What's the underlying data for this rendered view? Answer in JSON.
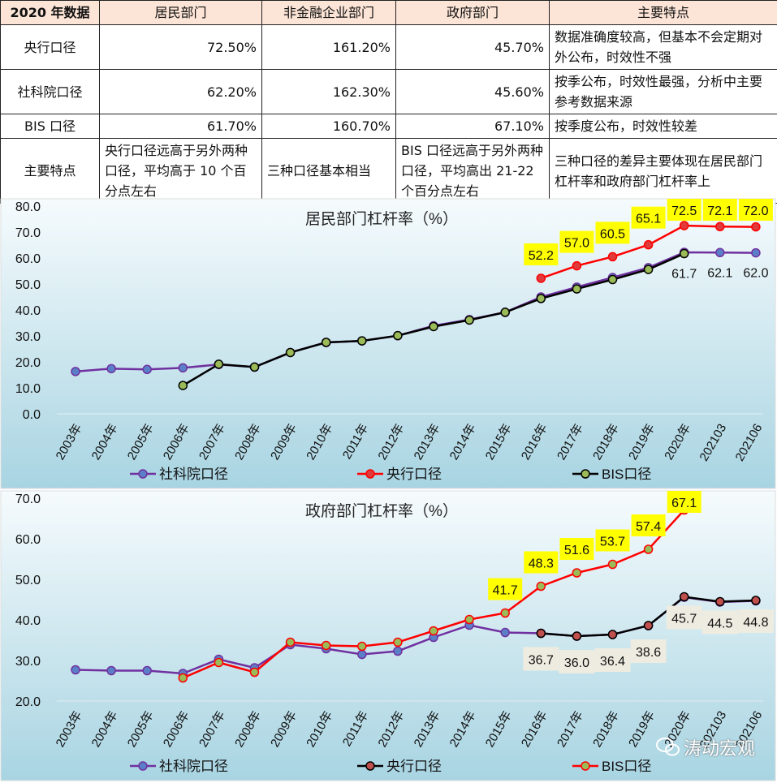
{
  "table": {
    "headers": [
      "2020 年数据",
      "居民部门",
      "非金融企业部门",
      "政府部门",
      "主要特点"
    ],
    "rows": [
      {
        "name": "央行口径",
        "household": "72.50%",
        "corporate": "161.20%",
        "government": "45.70%",
        "feature": "数据准确度较高，但基本不会定期对外公布，时效性不强"
      },
      {
        "name": "社科院口径",
        "household": "62.20%",
        "corporate": "162.30%",
        "government": "45.60%",
        "feature": "按季公布，时效性最强，分析中主要参考数据来源"
      },
      {
        "name": "BIS 口径",
        "household": "61.70%",
        "corporate": "160.70%",
        "government": "67.10%",
        "feature": "按季度公布，时效性较差"
      },
      {
        "name": "主要特点",
        "household": "央行口径远高于另外两种口径，平均高于 10 个百分点左右",
        "corporate": "三种口径基本相当",
        "government": "BIS 口径远高于另外两种口径，平均高出 21-22 个百分点左右",
        "feature": "三种口径的差异主要体现在居民部门杠杆率和政府部门杠杆率上"
      }
    ]
  },
  "watermark": "涛动宏观",
  "colors": {
    "header_bg": "#fce4d6",
    "label_yellow": "#ffff00",
    "label_gray": "#eeece1",
    "purple": "#7030a0",
    "red": "#ff0000",
    "black": "#000000",
    "green_marker": "#9bbb59"
  },
  "chart_data": [
    {
      "type": "line",
      "title": "居民部门杠杆率（%）",
      "ylim": [
        0,
        80
      ],
      "yticks": [
        "0.0",
        "10.0",
        "20.0",
        "30.0",
        "40.0",
        "50.0",
        "60.0",
        "70.0",
        "80.0"
      ],
      "grid": false,
      "legend": "bottom",
      "categories": [
        "2003年",
        "2004年",
        "2005年",
        "2006年",
        "2007年",
        "2008年",
        "2009年",
        "2010年",
        "2011年",
        "2012年",
        "2013年",
        "2014年",
        "2015年",
        "2016年",
        "2017年",
        "2018年",
        "2019年",
        "2020年",
        "202103",
        "202106"
      ],
      "series": [
        {
          "name": "社科院口径",
          "line": "#7030a0",
          "marker": "#5b7fc7",
          "values": [
            16.3,
            17.4,
            17.1,
            17.7,
            19.0,
            18.0,
            23.6,
            27.5,
            28.1,
            30.1,
            33.9,
            36.3,
            39.1,
            45.0,
            48.8,
            52.5,
            56.3,
            62.2,
            62.1,
            62.0
          ]
        },
        {
          "name": "央行口径",
          "line": "#ff0000",
          "marker": "#e03a3a",
          "values": [
            null,
            null,
            null,
            null,
            null,
            null,
            null,
            null,
            null,
            null,
            null,
            null,
            null,
            52.2,
            57.0,
            60.5,
            65.1,
            72.5,
            72.1,
            72.0
          ]
        },
        {
          "name": "BIS口径",
          "line": "#000000",
          "marker": "#9bbb59",
          "values": [
            null,
            null,
            null,
            10.9,
            19.1,
            18.0,
            23.6,
            27.5,
            28.1,
            30.1,
            33.6,
            36.1,
            39.1,
            44.4,
            48.1,
            51.7,
            55.6,
            61.7,
            null,
            null
          ]
        }
      ],
      "data_labels": [
        {
          "series": 1,
          "index": 13,
          "text": "52.2",
          "style": "yellow"
        },
        {
          "series": 1,
          "index": 14,
          "text": "57.0",
          "style": "yellow"
        },
        {
          "series": 1,
          "index": 15,
          "text": "60.5",
          "style": "yellow"
        },
        {
          "series": 1,
          "index": 16,
          "text": "65.1",
          "style": "yellow"
        },
        {
          "series": 1,
          "index": 17,
          "text": "72.5",
          "style": "yellow"
        },
        {
          "series": 1,
          "index": 18,
          "text": "72.1",
          "style": "yellow"
        },
        {
          "series": 1,
          "index": 19,
          "text": "72.0",
          "style": "yellow"
        },
        {
          "series": 2,
          "index": 17,
          "text": "61.7",
          "style": "plain"
        },
        {
          "series": 0,
          "index": 18,
          "text": "62.1",
          "style": "plain"
        },
        {
          "series": 0,
          "index": 19,
          "text": "62.0",
          "style": "plain"
        }
      ]
    },
    {
      "type": "line",
      "title": "政府部门杠杆率（%）",
      "ylim": [
        20,
        70
      ],
      "yticks": [
        "20.0",
        "30.0",
        "40.0",
        "50.0",
        "60.0",
        "70.0"
      ],
      "grid": false,
      "legend": "bottom",
      "categories": [
        "2003年",
        "2004年",
        "2005年",
        "2006年",
        "2007年",
        "2008年",
        "2009年",
        "2010年",
        "2011年",
        "2012年",
        "2013年",
        "2014年",
        "2015年",
        "2016年",
        "2017年",
        "2018年",
        "2019年",
        "2020年",
        "202103",
        "202106"
      ],
      "series": [
        {
          "name": "社科院口径",
          "line": "#7030a0",
          "marker": "#5b7fc7",
          "values": [
            27.7,
            27.5,
            27.5,
            26.8,
            30.3,
            28.2,
            33.9,
            32.9,
            31.5,
            32.3,
            35.7,
            38.7,
            36.9,
            36.7,
            36.0,
            36.4,
            38.6,
            45.6,
            44.4,
            44.7
          ]
        },
        {
          "name": "央行口径",
          "line": "#000000",
          "marker": "#c0504d",
          "values": [
            null,
            null,
            null,
            null,
            null,
            null,
            null,
            null,
            null,
            null,
            null,
            null,
            null,
            36.7,
            36.0,
            36.4,
            38.6,
            45.7,
            44.5,
            44.8
          ]
        },
        {
          "name": "BIS口径",
          "line": "#ff0000",
          "marker": "#9bbb59",
          "values": [
            null,
            null,
            null,
            25.7,
            29.5,
            27.1,
            34.5,
            33.7,
            33.5,
            34.5,
            37.3,
            40.1,
            41.7,
            48.3,
            51.6,
            53.7,
            57.4,
            67.1,
            null,
            null
          ]
        }
      ],
      "data_labels": [
        {
          "series": 2,
          "index": 12,
          "text": "41.7",
          "style": "yellow"
        },
        {
          "series": 2,
          "index": 13,
          "text": "48.3",
          "style": "yellow"
        },
        {
          "series": 2,
          "index": 14,
          "text": "51.6",
          "style": "yellow"
        },
        {
          "series": 2,
          "index": 15,
          "text": "53.7",
          "style": "yellow"
        },
        {
          "series": 2,
          "index": 16,
          "text": "57.4",
          "style": "yellow"
        },
        {
          "series": 2,
          "index": 17,
          "text": "67.1",
          "style": "yellow"
        },
        {
          "series": 1,
          "index": 13,
          "text": "36.7",
          "style": "gray"
        },
        {
          "series": 1,
          "index": 14,
          "text": "36.0",
          "style": "gray"
        },
        {
          "series": 1,
          "index": 15,
          "text": "36.4",
          "style": "gray"
        },
        {
          "series": 1,
          "index": 16,
          "text": "38.6",
          "style": "gray"
        },
        {
          "series": 1,
          "index": 17,
          "text": "45.7",
          "style": "gray"
        },
        {
          "series": 1,
          "index": 18,
          "text": "44.5",
          "style": "gray"
        },
        {
          "series": 1,
          "index": 19,
          "text": "44.8",
          "style": "gray"
        }
      ]
    }
  ]
}
